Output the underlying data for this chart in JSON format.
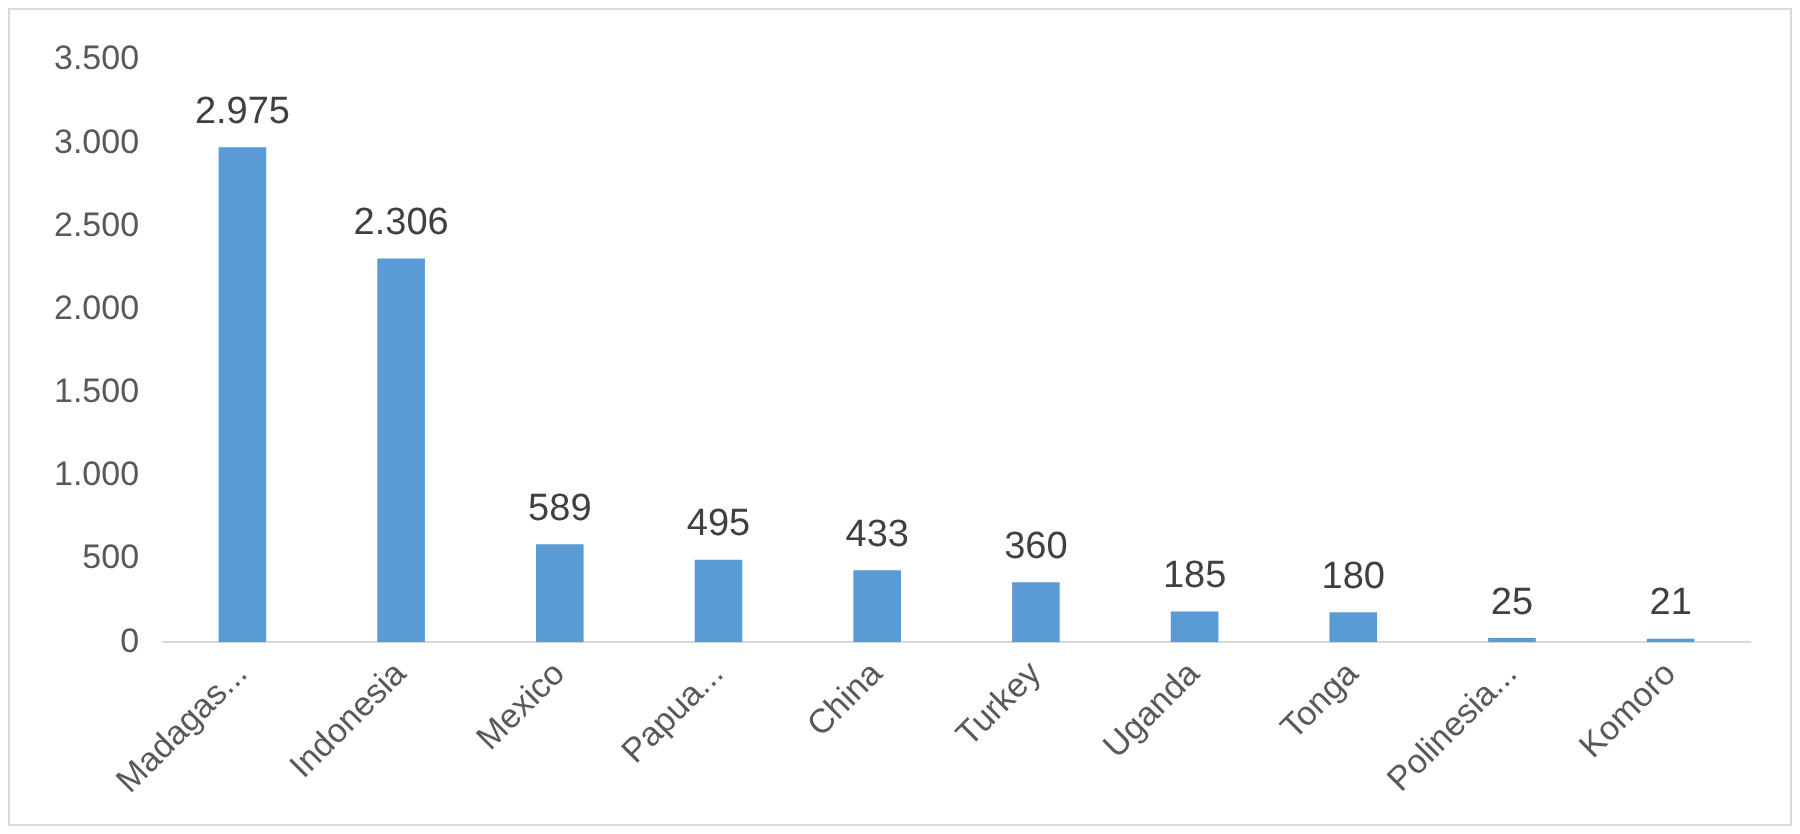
{
  "chart_data": {
    "type": "bar",
    "categories": [
      "Madagas...",
      "Indonesia",
      "Mexico",
      "Papua...",
      "China",
      "Turkey",
      "Uganda",
      "Tonga",
      "Polinesia...",
      "Komoro"
    ],
    "values": [
      2975,
      2306,
      589,
      495,
      433,
      360,
      185,
      180,
      25,
      21
    ],
    "value_labels": [
      "2.975",
      "2.306",
      "589",
      "495",
      "433",
      "360",
      "185",
      "180",
      "25",
      "21"
    ],
    "color": "#5b9bd5",
    "ylim": [
      0,
      3500
    ],
    "yticks": [
      {
        "value": 0,
        "label": "0"
      },
      {
        "value": 500,
        "label": "500"
      },
      {
        "value": 1000,
        "label": "1.000"
      },
      {
        "value": 1500,
        "label": "1.500"
      },
      {
        "value": 2000,
        "label": "2.000"
      },
      {
        "value": 2500,
        "label": "2.500"
      },
      {
        "value": 3000,
        "label": "3.000"
      },
      {
        "value": 3500,
        "label": "3.500"
      }
    ],
    "grid": false,
    "legend": false
  }
}
